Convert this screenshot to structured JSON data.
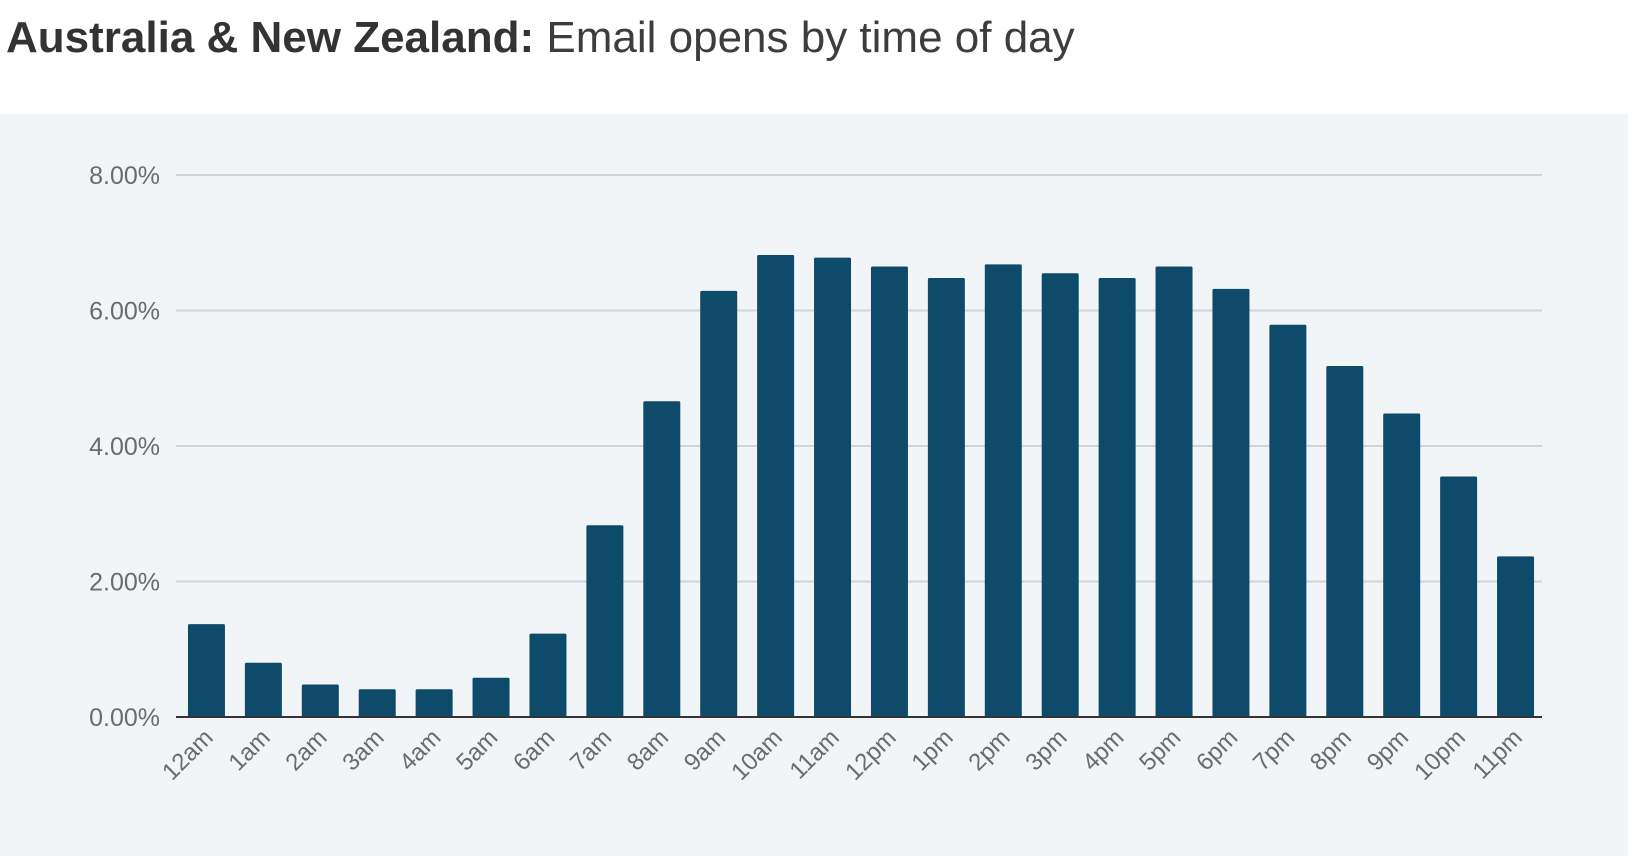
{
  "title": {
    "bold": "Australia & New Zealand:",
    "rest": "Email opens by time of day"
  },
  "colors": {
    "bar": "#0e4a69",
    "grid": "#cfd4d9",
    "axis": "#333333",
    "tick_text": "#6b6b6b",
    "panel_bg": "#f2f5f8"
  },
  "chart_data": {
    "type": "bar",
    "title": "Australia & New Zealand: Email opens by time of day",
    "xlabel": "",
    "ylabel": "",
    "categories": [
      "12am",
      "1am",
      "2am",
      "3am",
      "4am",
      "5am",
      "6am",
      "7am",
      "8am",
      "9am",
      "10am",
      "11am",
      "12pm",
      "1pm",
      "2pm",
      "3pm",
      "4pm",
      "5pm",
      "6pm",
      "7pm",
      "8pm",
      "9pm",
      "10pm",
      "11pm"
    ],
    "values": [
      1.37,
      0.8,
      0.48,
      0.41,
      0.41,
      0.58,
      1.23,
      2.83,
      4.66,
      6.29,
      6.82,
      6.78,
      6.65,
      6.48,
      6.68,
      6.55,
      6.48,
      6.65,
      6.32,
      5.79,
      5.18,
      4.48,
      3.55,
      2.37
    ],
    "ylim": [
      0,
      8
    ],
    "yticks": [
      0,
      2,
      4,
      6,
      8
    ],
    "ytick_labels": [
      "0.00%",
      "2.00%",
      "4.00%",
      "6.00%",
      "8.00%"
    ],
    "grid": true,
    "legend": "none"
  }
}
